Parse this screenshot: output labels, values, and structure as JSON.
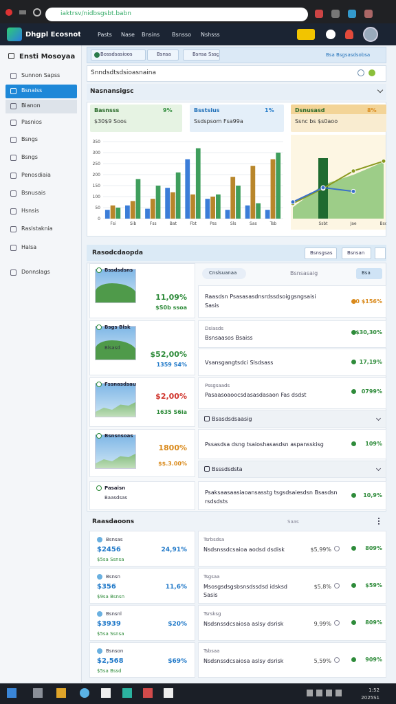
{
  "browser": {
    "url": "iaktrsv/nidbsgsbt.babn"
  },
  "nav": {
    "brand": "Dhgpl Ecosnot",
    "items": [
      "Pasts",
      "Nase",
      "Bnsins",
      "Bsnsso",
      "Nshsss"
    ]
  },
  "sidebar": {
    "title": "Ensti Mosoyaa",
    "active": 1,
    "items": [
      "Sunnon Sapss",
      "Bsnaiss",
      "Bianon",
      "Pasnios",
      "Bsngs",
      "Bsngs",
      "Penosdiaia",
      "Bsnusais",
      "Hsnsis",
      "Raslstaknia",
      "Halsa",
      "Donnslags"
    ]
  },
  "toolbar": {
    "tabs": [
      "Bossdsasioos",
      "Bsnsa",
      "Bsnsa Sssgs"
    ],
    "link": "Bsa Bsgsasdsobsa"
  },
  "search": {
    "placeholder": "Snndsdtsdsioasnaina"
  },
  "overview": {
    "title": "Nasnansigsc",
    "cards": [
      {
        "label": "Basnsss",
        "pct": "9%",
        "value": "$30$9 Soos",
        "tone": "green"
      },
      {
        "label": "Bsstsius",
        "pct": "1%",
        "value": "Ssdspsom Fsa99a",
        "tone": "blue"
      },
      {
        "label": "Dsnusasd",
        "pct": "8%",
        "value": "Ssnc bs $s0aoo",
        "tone": "orange"
      }
    ]
  },
  "bar_chart": {
    "type": "bar",
    "categories": [
      "Fsi",
      "Sib",
      "Fss",
      "Bat",
      "Fbt",
      "Pss",
      "Sls",
      "Sas",
      "Tsb"
    ],
    "ylim": [
      0,
      350
    ],
    "yticks": [
      0,
      50,
      100,
      150,
      200,
      250,
      300,
      350
    ],
    "grid": true,
    "series": [
      {
        "color": "#3b7dd8",
        "values": [
          40,
          60,
          45,
          140,
          270,
          90,
          40,
          60,
          40
        ]
      },
      {
        "color": "#b8862b",
        "values": [
          60,
          80,
          90,
          120,
          110,
          100,
          190,
          240,
          270
        ]
      },
      {
        "color": "#3f9e5c",
        "values": [
          50,
          180,
          150,
          210,
          320,
          110,
          150,
          70,
          300
        ]
      }
    ]
  },
  "line_chart": {
    "type": "line",
    "categories": [
      null,
      "Ssbt",
      "Jae",
      "Bsd"
    ],
    "ylim": [
      0,
      100
    ],
    "series": [
      {
        "color": "#7cbf6a",
        "style": "area",
        "values": [
          15,
          45,
          58,
          75
        ]
      },
      {
        "color": "#1f6b30",
        "style": "bar",
        "values": [
          null,
          80,
          null,
          null
        ]
      },
      {
        "color": "#8a9a20",
        "style": "line",
        "values": [
          20,
          40,
          63,
          76
        ]
      },
      {
        "color": "#3a6fc9",
        "style": "line",
        "values": [
          22,
          41,
          36,
          null
        ]
      }
    ]
  },
  "records": {
    "title": "Rasodcdaopda",
    "buttons": [
      "Bsnsgsas",
      "Bsnsan"
    ],
    "cards": [
      {
        "title": "Bssdsdsns",
        "value": "11,09%",
        "sub": "$S0b ssoa",
        "tone": "green",
        "sub_tone": "green",
        "image": "map"
      },
      {
        "title": "Bsgs Blsk",
        "caption": "Blsasd",
        "value": "$52,00%",
        "sub": "1359 S4%",
        "tone": "green",
        "sub_tone": "blue",
        "image": "map"
      },
      {
        "title": "Fssnasdsau",
        "value": "$2,00%",
        "sub": "1635 S6ia",
        "tone": "red",
        "sub_tone": "green",
        "image": "chart"
      },
      {
        "title": "Bsnsnsoas",
        "value": "1800%",
        "sub": "$$.3.00%",
        "tone": "orange",
        "sub_tone": "orange",
        "image": "chart"
      },
      {
        "title": "Pasaisn",
        "caption": "Baasdsas"
      }
    ],
    "filter": {
      "chip": "Cnslsuanaa",
      "label": "Bsnsasaig",
      "button": "Bsa"
    },
    "items": [
      {
        "lines": [
          "Raasdsn Psasasasdnsrdssdsoiggsngsaisi",
          "Sasis"
        ],
        "value": "0 $156%",
        "tone": "orange"
      },
      {
        "label": "Dsiasds",
        "lines": [
          "Bsnsaasos Bsaiss"
        ],
        "value": "$30,30%",
        "tone": "green"
      },
      {
        "lines": [
          "Vsansgangtsdci Slsdsass"
        ],
        "value": "17,19%",
        "tone": "green"
      },
      {
        "label": "Pssgsaads",
        "lines": [
          "Pasaasoaoocsdasasdasaon Fas dsdst"
        ],
        "value": "0799%",
        "tone": "green"
      },
      {
        "heading": "Bsasdsdsaasig"
      },
      {
        "lines": [
          "Pssasdsa dsng tsaioshasasdsn aspansskisg"
        ],
        "value": "109%",
        "tone": "green"
      },
      {
        "heading": "Bsssdsdsta"
      },
      {
        "lines": [
          "Psaksaasaasiaoansasstg tsgsdsaiesdsn Bsasdsn",
          "rsdsdsts"
        ],
        "value": "10,9%",
        "tone": "green"
      }
    ]
  },
  "resources": {
    "title": "Raasdaoons",
    "link": "Saas",
    "rows": [
      {
        "label": "Bsnsas",
        "amount": "$2456",
        "pct": "24,91%",
        "note": "$5sa Ssnsa",
        "tag": "Tsrbsdsa",
        "lines": [
          "Nsdsnssdcsaioa aodsd dsdisk"
        ],
        "value": "$5,99%",
        "change": "809%"
      },
      {
        "label": "Bsnsn",
        "amount": "$356",
        "pct": "11,6%",
        "note": "$9sa Bsnsn",
        "tag": "Tsgsaa",
        "lines": [
          "Msosgsdsgsbsnsdssdsd idsksd",
          "Sasis"
        ],
        "value": "$5,8%",
        "change": "$59%"
      },
      {
        "label": "Bsnsnl",
        "amount": "$3939",
        "pct": "$20%",
        "note": "$5sa Ssnsa",
        "tag": "Tsrsksg",
        "lines": [
          "Nsdsnssdcsaiosa aslsy dsrisk"
        ],
        "value": "9,99%",
        "change": "809%"
      },
      {
        "label": "Bsnson",
        "amount": "$2,568",
        "pct": "$69%",
        "note": "$5sa Bssd",
        "tag": "Tsbsaa",
        "lines": [
          "Nsdsnssdcsaiosa aslsy dsrisk"
        ],
        "value": "5,59%",
        "change": "909%"
      }
    ]
  },
  "taskbar": {
    "time": "1:52",
    "date": "2025S1"
  }
}
